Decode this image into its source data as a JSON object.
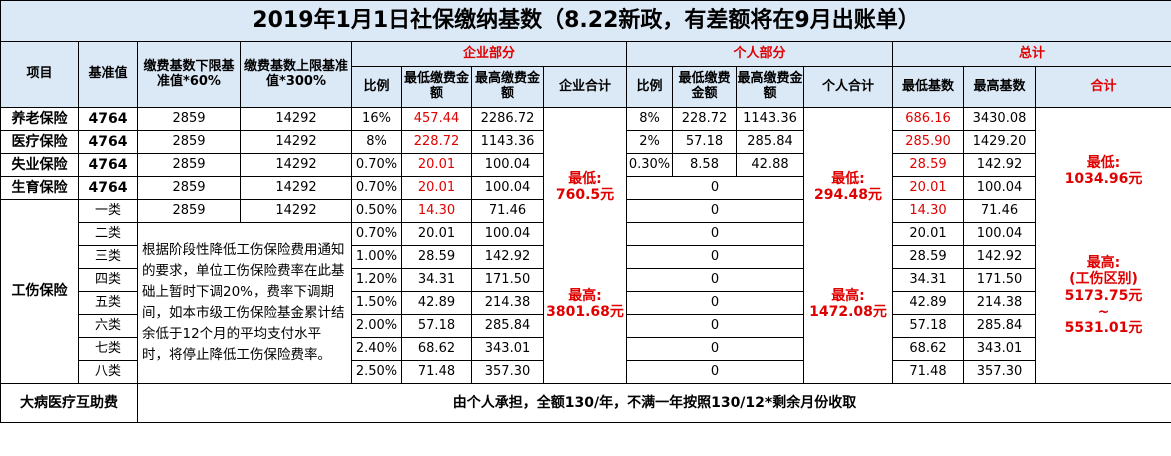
{
  "title": "2019年1月1日社保缴纳基数（8.22新政，有差额将在9月出账单）",
  "headers": {
    "item": "项目",
    "base": "基准值",
    "lower_base": "缴费基数下限基准值*60%",
    "upper_base": "缴费基数上限基准值*300%",
    "company_section": "企业部分",
    "personal_section": "个人部分",
    "total_section": "总计",
    "ratio": "比例",
    "min_amount": "最低缴费金额",
    "max_amount": "最高缴费金额",
    "company_total": "企业合计",
    "personal_ratio": "比例",
    "personal_min": "最低缴费金额",
    "personal_max": "最高缴费金额",
    "personal_total": "个人合计",
    "min_base": "最低基数",
    "max_base": "最高基数",
    "grand_total": "合计"
  },
  "rows": [
    {
      "item": "养老保险",
      "base": "4764",
      "lower": "2859",
      "upper": "14292",
      "c_ratio": "16%",
      "c_min": "457.44",
      "c_max": "2286.72",
      "p_ratio": "8%",
      "p_min": "228.72",
      "p_max": "1143.36",
      "t_min": "686.16",
      "t_max": "3430.08"
    },
    {
      "item": "医疗保险",
      "base": "4764",
      "lower": "2859",
      "upper": "14292",
      "c_ratio": "8%",
      "c_min": "228.72",
      "c_max": "1143.36",
      "p_ratio": "2%",
      "p_min": "57.18",
      "p_max": "285.84",
      "t_min": "285.90",
      "t_max": "1429.20"
    },
    {
      "item": "失业保险",
      "base": "4764",
      "lower": "2859",
      "upper": "14292",
      "c_ratio": "0.70%",
      "c_min": "20.01",
      "c_max": "100.04",
      "p_ratio": "0.30%",
      "p_min": "8.58",
      "p_max": "42.88",
      "t_min": "28.59",
      "t_max": "142.92"
    },
    {
      "item": "生育保险",
      "base": "4764",
      "lower": "2859",
      "upper": "14292",
      "c_ratio": "0.70%",
      "c_min": "20.01",
      "c_max": "100.04",
      "p_zero": "0",
      "t_min": "20.01",
      "t_max": "100.04"
    }
  ],
  "injury": {
    "label": "工伤保险",
    "note": "根据阶段性降低工伤保险费用通知的要求，单位工伤保险费率在此基础上暂时下调20%，费率下调期间，如本市级工伤保险基金累计结余低于12个月的平均支付水平时，将停止降低工伤保险费率。",
    "first": {
      "cls": "一类",
      "lower": "2859",
      "upper": "14292"
    },
    "classes": [
      {
        "cls": "一类",
        "ratio": "0.50%",
        "min": "14.30",
        "max": "71.46",
        "p": "0",
        "t_min": "14.30",
        "t_max": "71.46"
      },
      {
        "cls": "二类",
        "ratio": "0.70%",
        "min": "20.01",
        "max": "100.04",
        "p": "0",
        "t_min": "20.01",
        "t_max": "100.04"
      },
      {
        "cls": "三类",
        "ratio": "1.00%",
        "min": "28.59",
        "max": "142.92",
        "p": "0",
        "t_min": "28.59",
        "t_max": "142.92"
      },
      {
        "cls": "四类",
        "ratio": "1.20%",
        "min": "34.31",
        "max": "171.50",
        "p": "0",
        "t_min": "34.31",
        "t_max": "171.50"
      },
      {
        "cls": "五类",
        "ratio": "1.50%",
        "min": "42.89",
        "max": "214.38",
        "p": "0",
        "t_min": "42.89",
        "t_max": "214.38"
      },
      {
        "cls": "六类",
        "ratio": "2.00%",
        "min": "57.18",
        "max": "285.84",
        "p": "0",
        "t_min": "57.18",
        "t_max": "285.84"
      },
      {
        "cls": "七类",
        "ratio": "2.40%",
        "min": "68.62",
        "max": "343.01",
        "p": "0",
        "t_min": "68.62",
        "t_max": "343.01"
      },
      {
        "cls": "八类",
        "ratio": "2.50%",
        "min": "71.48",
        "max": "357.30",
        "p": "0",
        "t_min": "71.48",
        "t_max": "357.30"
      }
    ]
  },
  "company_total": {
    "min_label": "最低:",
    "min_value": "760.5元",
    "max_label": "最高:",
    "max_value": "3801.68元"
  },
  "personal_total": {
    "min_label": "最低:",
    "min_value": "294.48元",
    "max_label": "最高:",
    "max_value": "1472.08元"
  },
  "grand_total": {
    "min_label": "最低:",
    "min_value": "1034.96元",
    "max_label": "最高:",
    "max_sub": "(工伤区别)",
    "max_range_low": "5173.75元",
    "range_sep": "~",
    "max_range_high": "5531.01元"
  },
  "footer": {
    "label": "大病医疗互助费",
    "text": "由个人承担，全额130/年，不满一年按照130/12*剩余月份收取"
  }
}
